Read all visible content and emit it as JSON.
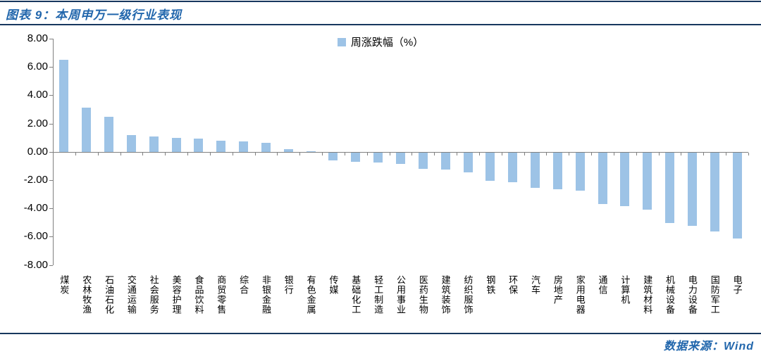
{
  "header": {
    "title": "图表 9：本周申万一级行业表现"
  },
  "footer": {
    "source": "数据来源：Wind"
  },
  "colors": {
    "bar": "#9DC3E6",
    "rule": "#17375E",
    "title_text": "#2166AC",
    "axis": "#808080"
  },
  "chart_data": {
    "type": "bar",
    "title": "本周申万一级行业表现",
    "legend": [
      "周涨跌幅（%）"
    ],
    "legend_position": "top-center",
    "grid": false,
    "ylim": [
      -8,
      8
    ],
    "y_ticks": [
      "8.00",
      "6.00",
      "4.00",
      "2.00",
      "0.00",
      "-2.00",
      "-4.00",
      "-6.00",
      "-8.00"
    ],
    "xlabel": "",
    "ylabel": "",
    "categories": [
      "煤炭",
      "农林牧渔",
      "石油石化",
      "交通运输",
      "社会服务",
      "美容护理",
      "食品饮料",
      "商贸零售",
      "综合",
      "非银金融",
      "银行",
      "有色金属",
      "传媒",
      "基础化工",
      "轻工制造",
      "公用事业",
      "医药生物",
      "建筑装饰",
      "纺织服饰",
      "钢铁",
      "环保",
      "汽车",
      "房地产",
      "家用电器",
      "通信",
      "计算机",
      "建筑材料",
      "机械设备",
      "电力设备",
      "国防军工",
      "电子"
    ],
    "values": [
      6.5,
      3.1,
      2.5,
      1.2,
      1.1,
      1.0,
      0.95,
      0.8,
      0.75,
      0.65,
      0.2,
      0.05,
      -0.55,
      -0.65,
      -0.7,
      -0.8,
      -1.15,
      -1.2,
      -1.4,
      -2.0,
      -2.1,
      -2.5,
      -2.6,
      -2.7,
      -3.65,
      -3.8,
      -4.05,
      -5.0,
      -5.2,
      -5.6,
      -6.1
    ]
  }
}
